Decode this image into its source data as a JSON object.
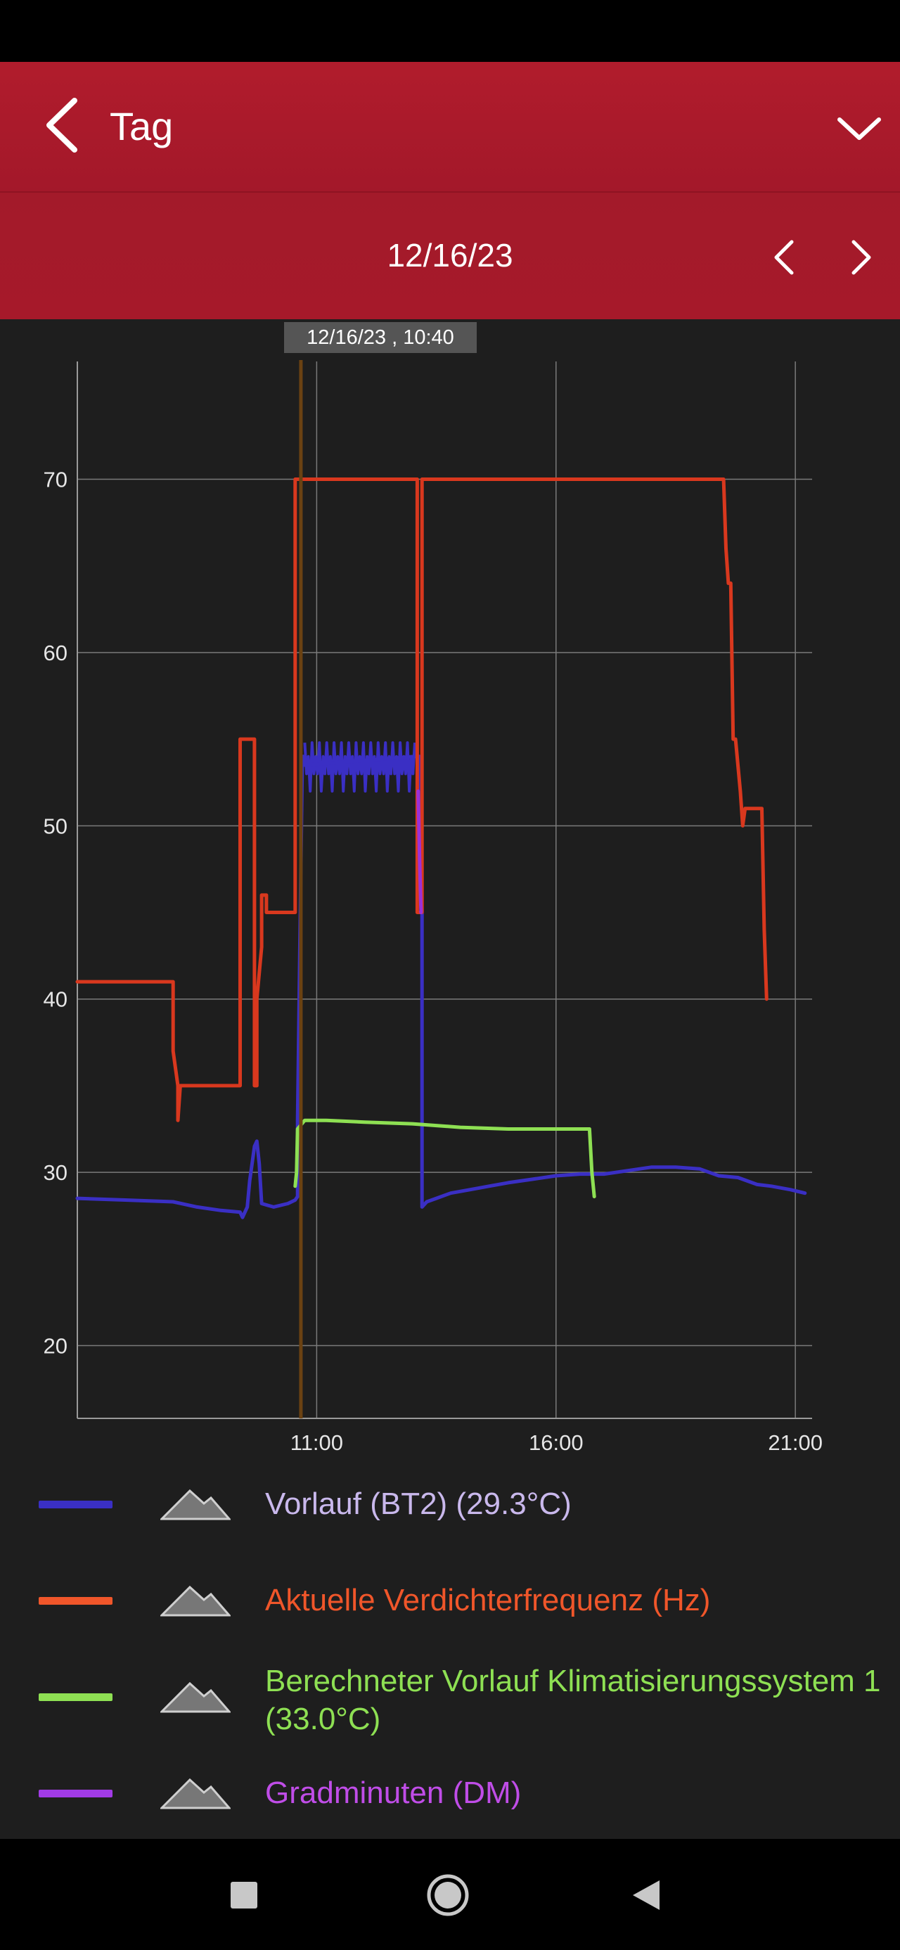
{
  "header": {
    "title": "Tag",
    "back_icon": "chevron-left-icon",
    "menu_icon": "chevron-down-icon"
  },
  "date_bar": {
    "date": "12/16/23",
    "prev_icon": "chevron-left-icon",
    "next_icon": "chevron-right-icon"
  },
  "cursor": {
    "label": "12/16/23 , 10:40",
    "time": 10.67
  },
  "chart_data": {
    "type": "line",
    "title": "",
    "xlabel": "",
    "ylabel": "",
    "x_unit": "hour of day",
    "xlim": [
      6.0,
      21.35
    ],
    "ylim": [
      15.8,
      76.8
    ],
    "x_ticks": [
      {
        "label": "11:00",
        "value": 11
      },
      {
        "label": "16:00",
        "value": 16
      },
      {
        "label": "21:00",
        "value": 21
      }
    ],
    "y_ticks": [
      {
        "label": "20",
        "value": 20
      },
      {
        "label": "30",
        "value": 30
      },
      {
        "label": "40",
        "value": 40
      },
      {
        "label": "50",
        "value": 50
      },
      {
        "label": "60",
        "value": 60
      },
      {
        "label": "70",
        "value": 70
      }
    ],
    "grid": true,
    "series": [
      {
        "name": "Aktuelle Verdichterfrequenz (Hz)",
        "color": "#d9381e",
        "x": [
          6.0,
          8.0,
          8.0,
          8.1,
          8.1,
          8.15,
          8.15,
          9.4,
          9.4,
          9.45,
          9.45,
          9.7,
          9.7,
          9.75,
          9.75,
          9.85,
          9.85,
          9.95,
          9.95,
          10.0,
          10.0,
          10.55,
          10.55,
          10.6,
          10.6,
          13.1,
          13.1,
          13.2,
          13.2,
          13.25,
          13.25,
          19.5,
          19.55,
          19.6,
          19.65,
          19.7,
          19.75,
          19.85,
          19.9,
          19.95,
          20.0,
          20.3,
          20.35,
          20.4
        ],
        "y": [
          41,
          41,
          37,
          35,
          33,
          35,
          35,
          35,
          55,
          55,
          55,
          55,
          35,
          35,
          40,
          43,
          46,
          46,
          45,
          45,
          45,
          45,
          70,
          70,
          70,
          70,
          45,
          45,
          70,
          70,
          70,
          70,
          66,
          64,
          64,
          55,
          55,
          52,
          50,
          51,
          51,
          51,
          44,
          40
        ]
      },
      {
        "name": "Vorlauf (BT2) (29.3°C)",
        "color": "#3a2fc4",
        "x": [
          6.0,
          7.0,
          8.0,
          8.5,
          9.0,
          9.4,
          9.45,
          9.55,
          9.6,
          9.7,
          9.75,
          9.8,
          9.85,
          10.1,
          10.4,
          10.55,
          10.6,
          10.6,
          10.7,
          10.75,
          10.75,
          13.05,
          13.1,
          13.15,
          13.2,
          13.2,
          13.3,
          13.5,
          13.8,
          14.2,
          14.6,
          15.0,
          15.5,
          16.0,
          16.5,
          17.0,
          17.5,
          18.0,
          18.5,
          19.0,
          19.4,
          19.8,
          20.2,
          20.5,
          20.9,
          21.2
        ],
        "y": [
          28.5,
          28.4,
          28.3,
          28.0,
          27.8,
          27.7,
          27.4,
          28.0,
          29.5,
          31.5,
          31.8,
          30.5,
          28.2,
          28.0,
          28.2,
          28.4,
          28.6,
          33.0,
          54.0,
          54.0,
          53.5,
          54.0,
          54.0,
          54.0,
          45.0,
          28.0,
          28.3,
          28.5,
          28.8,
          29.0,
          29.2,
          29.4,
          29.6,
          29.8,
          29.9,
          29.9,
          30.1,
          30.3,
          30.3,
          30.2,
          29.8,
          29.7,
          29.3,
          29.2,
          29.0,
          28.8
        ]
      },
      {
        "name": "Berechneter Vorlauf Klimatisierungssystem 1 (33.0°C)",
        "color": "#8ee053",
        "x": [
          10.55,
          10.58,
          10.6,
          10.75,
          11.2,
          12.0,
          13.0,
          14.0,
          15.0,
          16.0,
          16.5,
          16.7,
          16.75,
          16.8
        ],
        "y": [
          29.2,
          30.0,
          32.5,
          33.0,
          33.0,
          32.9,
          32.8,
          32.6,
          32.5,
          32.5,
          32.5,
          32.5,
          30.0,
          28.6
        ]
      },
      {
        "name": "Gradminuten (DM)",
        "color": "#9b30d9",
        "x": [
          13.12,
          13.15,
          13.18
        ],
        "y": [
          52,
          48,
          45
        ]
      }
    ],
    "noise_band": {
      "series": "Vorlauf (BT2) (29.3°C)",
      "x_range": [
        10.75,
        13.05
      ],
      "y_range": [
        52.0,
        54.8
      ]
    }
  },
  "legend": [
    {
      "label": "Vorlauf (BT2) (29.3°C)",
      "swatch_color": "#3a2fc4",
      "label_color": "#c9b8ec",
      "icon": "area-toggle-icon"
    },
    {
      "label": "Aktuelle Verdichterfrequenz (Hz)",
      "swatch_color": "#f0562a",
      "label_color": "#f0562a",
      "icon": "area-toggle-icon"
    },
    {
      "label": "Berechneter Vorlauf Klimatisierungssystem 1 (33.0°C)",
      "swatch_color": "#8ee053",
      "label_color": "#8ee053",
      "icon": "area-toggle-icon"
    },
    {
      "label": "Gradminuten (DM)",
      "swatch_color": "#a23be6",
      "label_color": "#c04de8",
      "icon": "area-toggle-icon"
    }
  ],
  "nav_bar": {
    "recents_icon": "square-icon",
    "home_icon": "circle-icon",
    "back_icon": "triangle-back-icon"
  }
}
